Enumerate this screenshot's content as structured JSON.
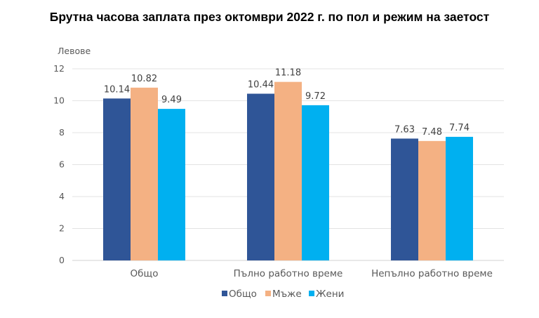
{
  "chart_data": {
    "type": "bar",
    "title": "Брутна часова заплата през октомври 2022 г. по пол и режим на заетост",
    "ylabel": "Левове",
    "xlabel": "",
    "categories": [
      "Общо",
      "Пълно работно време",
      "Непълно работно време"
    ],
    "series": [
      {
        "name": "Общо",
        "values": [
          10.14,
          10.44,
          7.63
        ],
        "color": "#2F5597"
      },
      {
        "name": "Мъже",
        "values": [
          10.82,
          11.18,
          7.48
        ],
        "color": "#F4B183"
      },
      {
        "name": "Жени",
        "values": [
          9.49,
          9.72,
          7.74
        ],
        "color": "#00B0F0"
      }
    ],
    "ylim": [
      0,
      12
    ],
    "yticks": [
      0,
      2,
      4,
      6,
      8,
      10,
      12
    ],
    "grid": true,
    "legend": "bottom"
  }
}
